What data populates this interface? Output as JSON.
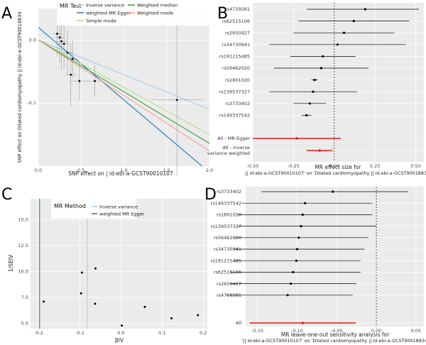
{
  "panels": {
    "a": {
      "letter": "A"
    },
    "b": {
      "letter": "B"
    },
    "c": {
      "letter": "C"
    },
    "d": {
      "letter": "D"
    }
  },
  "colors": {
    "panel_bg": "#ebebeb",
    "grid": "#ffffff",
    "inverse_variance": "#a6cee3",
    "weighted_mr_egger": "#1f78b4",
    "simple_mode": "#b2df8a",
    "weighted_median": "#33a02c",
    "weighted_mode": "#fb9a99",
    "point": "#000000",
    "summary": "#e31a1c"
  },
  "chart_data": [
    {
      "type": "scatter",
      "panel": "A",
      "legend_title": "MR Test",
      "xlabel": "SNP effect on | id:ebi-a-GCST90010107",
      "ylabel": "SNP effect on Dilated cardiomyopathy || id:ebi-a-GCST90018834",
      "xlim": [
        0,
        2.0
      ],
      "ylim": [
        -0.2,
        0.05
      ],
      "x_ticks": [
        0.0,
        0.5,
        1.0,
        1.5,
        2.0
      ],
      "y_ticks": [
        0.0,
        -0.1
      ],
      "grid": true,
      "legend_position": "top",
      "points": [
        {
          "x": 0.22,
          "y": 0.01,
          "xerr": 0.05,
          "yerr": 0.035
        },
        {
          "x": 0.25,
          "y": 0.004,
          "xerr": 0.05,
          "yerr": 0.04
        },
        {
          "x": 0.27,
          "y": -0.002,
          "xerr": 0.06,
          "yerr": 0.045
        },
        {
          "x": 0.3,
          "y": -0.006,
          "xerr": 0.06,
          "yerr": 0.04
        },
        {
          "x": 0.34,
          "y": -0.02,
          "xerr": 0.06,
          "yerr": 0.035
        },
        {
          "x": 0.38,
          "y": -0.055,
          "xerr": 0.07,
          "yerr": 0.05
        },
        {
          "x": 0.48,
          "y": -0.065,
          "xerr": 0.12,
          "yerr": 0.03
        },
        {
          "x": 0.66,
          "y": -0.065,
          "xerr": 0.1,
          "yerr": 0.025
        },
        {
          "x": 1.62,
          "y": -0.095,
          "xerr": 0.3,
          "yerr": 0.12
        },
        {
          "x": 0.4,
          "y": -0.03,
          "xerr": 0.06,
          "yerr": 0.03
        }
      ],
      "series": [
        {
          "name": "Inverse variance",
          "color_key": "inverse_variance",
          "slope": -0.055,
          "intercept": 0.0
        },
        {
          "name": "weighted MR Egger",
          "color_key": "weighted_mr_egger",
          "slope": -0.115,
          "intercept": 0.02
        },
        {
          "name": "Simple mode",
          "color_key": "simple_mode",
          "slope": -0.075,
          "intercept": 0.0
        },
        {
          "name": "Weighted median",
          "color_key": "weighted_median",
          "slope": -0.082,
          "intercept": 0.0
        },
        {
          "name": "Weighted mode",
          "color_key": "weighted_mode",
          "slope": -0.088,
          "intercept": 0.0
        }
      ]
    },
    {
      "type": "forest",
      "panel": "B",
      "xlabel_line1": "MR effect size for",
      "xlabel_line2": "|| id:ebi-a-GCST90010107' on 'Dilated cardiomyopathy || id:ebi-a-GCST90018834'",
      "xlim": [
        -0.5,
        0.55
      ],
      "x_ticks": [
        -0.5,
        -0.25,
        0.0,
        0.25,
        0.5
      ],
      "x_tick_labels": [
        "-0.50",
        "-0.25",
        "0.00",
        "0.25",
        "0.50"
      ],
      "snps": [
        {
          "label": "rs4759281",
          "b": 0.19,
          "lo": -0.17,
          "hi": 0.52
        },
        {
          "label": "rs62515106",
          "b": 0.12,
          "lo": -0.22,
          "hi": 0.46
        },
        {
          "label": "rs2650427",
          "b": 0.06,
          "lo": -0.25,
          "hi": 0.37
        },
        {
          "label": "rs34730941",
          "b": 0.02,
          "lo": -0.4,
          "hi": 0.44
        },
        {
          "label": "rs191215485",
          "b": -0.07,
          "lo": -0.27,
          "hi": 0.13
        },
        {
          "label": "rs56462020",
          "b": -0.08,
          "lo": -0.37,
          "hi": 0.21
        },
        {
          "label": "rs1801020",
          "b": -0.12,
          "lo": -0.14,
          "hi": -0.1
        },
        {
          "label": "rs139537327",
          "b": -0.13,
          "lo": -0.4,
          "hi": 0.14
        },
        {
          "label": "rs3733402",
          "b": -0.15,
          "lo": -0.25,
          "hi": -0.05
        },
        {
          "label": "rs146337542",
          "b": -0.17,
          "lo": -0.2,
          "hi": -0.14
        }
      ],
      "summary": [
        {
          "label": "All - MR Egger",
          "b": -0.23,
          "lo": -0.5,
          "hi": 0.04
        },
        {
          "label_line1": "All - Inverse",
          "label_line2": "variance weighted",
          "b": -0.09,
          "lo": -0.17,
          "hi": -0.01
        }
      ]
    },
    {
      "type": "scatter",
      "panel": "C",
      "legend_title": "MR Method",
      "legend_entries": [
        "Inverse variance",
        "weighted MR Egger"
      ],
      "xlabel": "βIV",
      "ylabel": "1/SEIV",
      "xlim": [
        -0.22,
        0.21
      ],
      "ylim": [
        4.5,
        17
      ],
      "x_ticks": [
        -0.2,
        -0.1,
        0.0,
        0.1,
        0.2
      ],
      "x_tick_labels": [
        "-0.2",
        "-0.1",
        "0.0",
        "0.1",
        "0.2"
      ],
      "y_ticks": [
        5.0,
        7.5,
        10.0,
        12.5,
        15.0
      ],
      "y_tick_labels": [
        "5.0",
        "7.5",
        "10.0",
        "12.5",
        "15.0"
      ],
      "vlines": [
        {
          "x": -0.198,
          "color_key": "weighted_mr_egger"
        },
        {
          "x": -0.082,
          "color_key": "inverse_variance"
        }
      ],
      "points": [
        {
          "x": -0.128,
          "y": 16.2
        },
        {
          "x": -0.095,
          "y": 9.9
        },
        {
          "x": -0.062,
          "y": 10.3
        },
        {
          "x": -0.097,
          "y": 7.9
        },
        {
          "x": -0.188,
          "y": 7.1
        },
        {
          "x": -0.063,
          "y": 6.9
        },
        {
          "x": 0.058,
          "y": 6.6
        },
        {
          "x": 0.123,
          "y": 5.5
        },
        {
          "x": 0.187,
          "y": 5.8
        },
        {
          "x": 0.002,
          "y": 4.8
        }
      ]
    },
    {
      "type": "forest",
      "panel": "D",
      "xlabel_line1": "MR leave-one-out sensitivity analysis for",
      "xlabel_line2": "'|| id:ebi-a-GCST90010107' on 'Dilated cardiomyopathy || id:ebi-a-GCST90018834'",
      "xlim": [
        -0.165,
        0.06
      ],
      "x_ticks": [
        -0.15,
        -0.1,
        -0.05,
        0.0,
        0.05
      ],
      "x_tick_labels": [
        "-0.15",
        "-0.10",
        "-0.05",
        "0.00",
        "0.05"
      ],
      "snps": [
        {
          "label": "rs3733402",
          "b": -0.055,
          "lo": -0.145,
          "hi": 0.04
        },
        {
          "label": "rs146337542",
          "b": -0.09,
          "lo": -0.17,
          "hi": -0.005
        },
        {
          "label": "rs1801020",
          "b": -0.093,
          "lo": -0.175,
          "hi": -0.005
        },
        {
          "label": "rs139537327",
          "b": -0.095,
          "lo": -0.175,
          "hi": 0.0
        },
        {
          "label": "rs56462020",
          "b": -0.098,
          "lo": -0.18,
          "hi": -0.01
        },
        {
          "label": "rs34730941",
          "b": -0.1,
          "lo": -0.18,
          "hi": -0.015
        },
        {
          "label": "rs191215485",
          "b": -0.101,
          "lo": -0.18,
          "hi": -0.02
        },
        {
          "label": "rs62515106",
          "b": -0.105,
          "lo": -0.185,
          "hi": -0.02
        },
        {
          "label": "rs2650427",
          "b": -0.108,
          "lo": -0.185,
          "hi": -0.025
        },
        {
          "label": "rs4759281",
          "b": -0.112,
          "lo": -0.19,
          "hi": -0.03
        }
      ],
      "summary": [
        {
          "label": "All",
          "b": -0.093,
          "lo": -0.16,
          "hi": -0.026
        }
      ]
    }
  ]
}
